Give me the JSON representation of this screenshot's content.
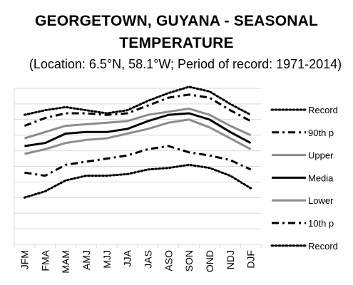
{
  "chart_data": {
    "type": "line",
    "title_line1": "GEORGETOWN, GUYANA - SEASONAL",
    "title_line2": "TEMPERATURE",
    "subtitle": "(Location: 6.5°N, 58.1°W; Period of record: 1971-2014)",
    "categories": [
      "JFM",
      "FMA",
      "MAM",
      "AMJ",
      "MJJ",
      "JJA",
      "JAS",
      "ASO",
      "SON",
      "OND",
      "NDJ",
      "DJF"
    ],
    "ylim": [
      0,
      10
    ],
    "grid": true,
    "legend_position": "right",
    "series": [
      {
        "name": "Record",
        "style": "dotted",
        "color": "#000000",
        "values": [
          8.3,
          8.6,
          8.8,
          8.6,
          8.4,
          8.6,
          9.2,
          9.7,
          10.1,
          9.8,
          9.0,
          8.3
        ]
      },
      {
        "name": "90th p",
        "style": "dashdot",
        "color": "#000000",
        "values": [
          7.6,
          8.1,
          8.4,
          8.4,
          8.3,
          8.4,
          8.9,
          9.4,
          9.6,
          9.4,
          8.6,
          7.9
        ]
      },
      {
        "name": "Upper",
        "style": "solid-gray",
        "color": "#8c8c8c",
        "values": [
          6.8,
          7.2,
          7.6,
          7.7,
          7.8,
          7.9,
          8.3,
          8.5,
          8.7,
          8.3,
          7.6,
          7.0
        ]
      },
      {
        "name": "Media",
        "style": "solid-black",
        "color": "#000000",
        "values": [
          6.3,
          6.5,
          7.1,
          7.2,
          7.2,
          7.4,
          7.9,
          8.3,
          8.4,
          8.0,
          7.2,
          6.5
        ]
      },
      {
        "name": "Lower",
        "style": "solid-gray",
        "color": "#8c8c8c",
        "values": [
          5.8,
          6.1,
          6.5,
          6.7,
          6.8,
          7.1,
          7.4,
          7.8,
          8.0,
          7.5,
          6.8,
          6.1
        ]
      },
      {
        "name": "10th p",
        "style": "dashdot",
        "color": "#000000",
        "values": [
          4.6,
          4.4,
          5.1,
          5.3,
          5.5,
          5.7,
          6.1,
          6.3,
          5.9,
          5.7,
          5.4,
          4.8
        ]
      },
      {
        "name": "Record",
        "style": "dotted",
        "color": "#000000",
        "values": [
          3.0,
          3.4,
          4.1,
          4.4,
          4.4,
          4.5,
          4.8,
          4.9,
          5.1,
          4.9,
          4.4,
          3.6
        ]
      }
    ]
  }
}
